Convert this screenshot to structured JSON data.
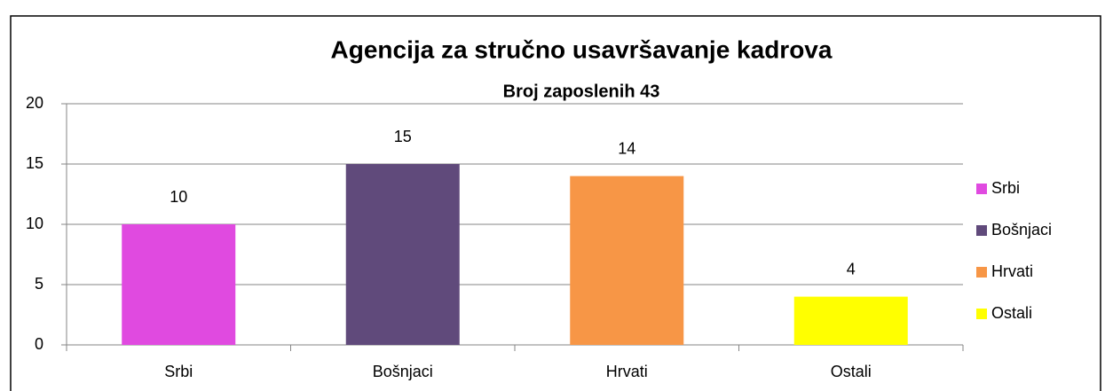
{
  "chart_data": {
    "type": "bar",
    "title": "Agencija za stručno usavršavanje kadrova",
    "subtitle": "Broj zaposlenih 43",
    "categories": [
      "Srbi",
      "Bošnjaci",
      "Hrvati",
      "Ostali"
    ],
    "values": [
      10,
      15,
      14,
      4
    ],
    "colors": [
      "#e04ae0",
      "#604a7b",
      "#f79646",
      "#ffff00"
    ],
    "ylim": [
      0,
      20
    ],
    "yticks": [
      0,
      5,
      10,
      15,
      20
    ],
    "grid": true,
    "legend": "right"
  }
}
